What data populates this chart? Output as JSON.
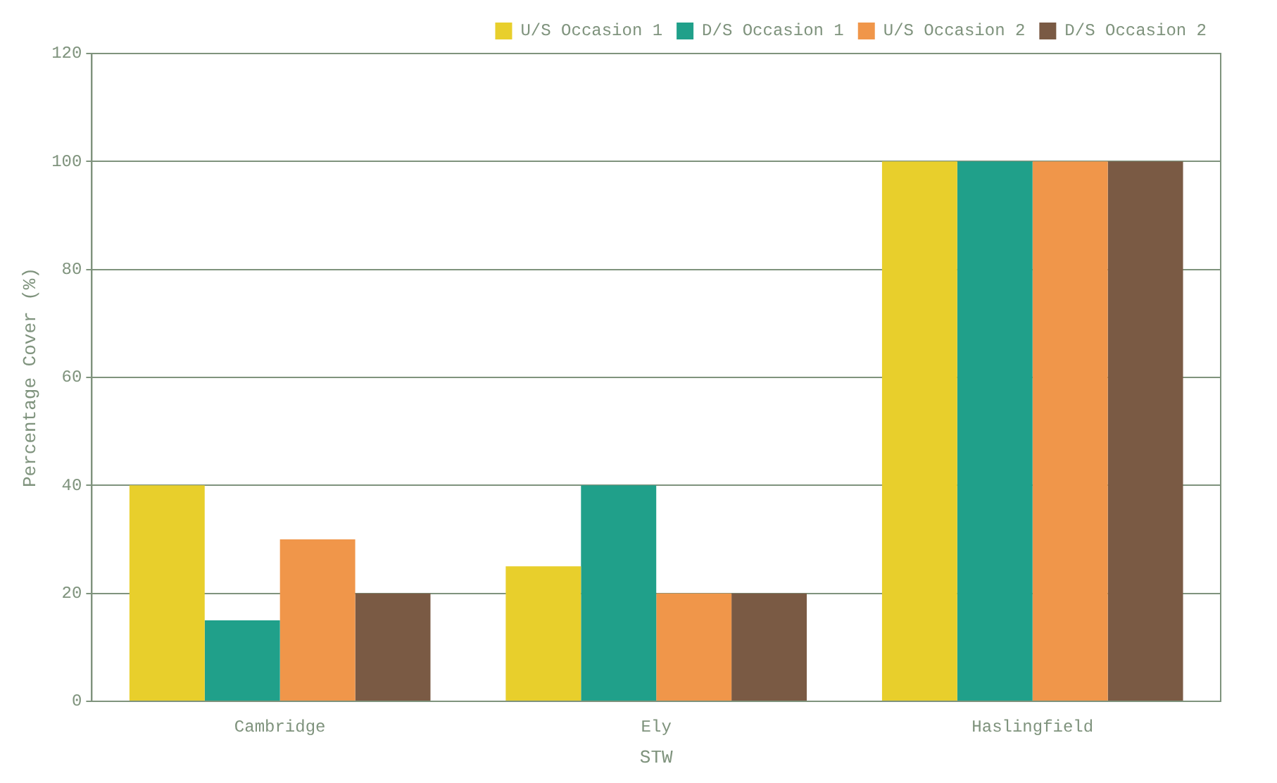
{
  "chart_data": {
    "type": "bar",
    "xlabel": "STW",
    "ylabel": "Percentage Cover (%)",
    "categories": [
      "Cambridge",
      "Ely",
      "Haslingfield"
    ],
    "series": [
      {
        "name": "U/S Occasion 1",
        "color": "#e8cf2c",
        "values": [
          40,
          25,
          100
        ]
      },
      {
        "name": "D/S Occasion 1",
        "color": "#20a08a",
        "values": [
          15,
          40,
          100
        ]
      },
      {
        "name": "U/S Occasion 2",
        "color": "#f0964a",
        "values": [
          30,
          20,
          100
        ]
      },
      {
        "name": "D/S Occasion 2",
        "color": "#7a5a44",
        "values": [
          20,
          20,
          100
        ]
      }
    ],
    "ylim": [
      0,
      120
    ],
    "yticks": [
      0,
      20,
      40,
      60,
      80,
      100,
      120
    ],
    "grid": "y",
    "legend": "top right"
  }
}
